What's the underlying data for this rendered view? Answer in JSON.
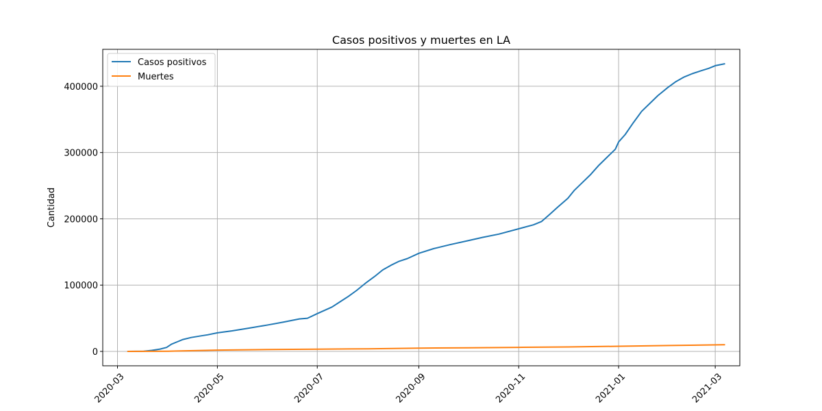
{
  "chart_data": {
    "type": "line",
    "title": "Casos positivos y muertes en LA",
    "xlabel": "",
    "ylabel": "Cantidad",
    "x_type": "date",
    "x_range": [
      "2020-02-21",
      "2021-03-16"
    ],
    "ylim": [
      -21700,
      455700
    ],
    "x_ticks": [
      "2020-03-01",
      "2020-05-01",
      "2020-07-01",
      "2020-09-01",
      "2020-11-01",
      "2021-01-01",
      "2021-03-01"
    ],
    "x_tick_labels": [
      "2020-03",
      "2020-05",
      "2020-07",
      "2020-09",
      "2020-11",
      "2021-01",
      "2021-03"
    ],
    "y_ticks": [
      0,
      100000,
      200000,
      300000,
      400000
    ],
    "y_tick_labels": [
      "0",
      "100000",
      "200000",
      "300000",
      "400000"
    ],
    "grid": true,
    "legend_position": "top-left",
    "series": [
      {
        "name": "Casos positivos",
        "color": "#1f77b4",
        "points": [
          [
            "2020-03-07",
            0
          ],
          [
            "2020-03-17",
            300
          ],
          [
            "2020-03-22",
            1500
          ],
          [
            "2020-03-27",
            3500
          ],
          [
            "2020-03-31",
            6000
          ],
          [
            "2020-04-03",
            11000
          ],
          [
            "2020-04-07",
            15000
          ],
          [
            "2020-04-10",
            18000
          ],
          [
            "2020-04-15",
            21000
          ],
          [
            "2020-04-20",
            23000
          ],
          [
            "2020-04-25",
            25000
          ],
          [
            "2020-05-01",
            28000
          ],
          [
            "2020-05-10",
            31000
          ],
          [
            "2020-05-20",
            35000
          ],
          [
            "2020-06-01",
            40000
          ],
          [
            "2020-06-10",
            44000
          ],
          [
            "2020-06-20",
            49000
          ],
          [
            "2020-06-25",
            50000
          ],
          [
            "2020-07-01",
            57000
          ],
          [
            "2020-07-10",
            67000
          ],
          [
            "2020-07-15",
            75000
          ],
          [
            "2020-07-20",
            83000
          ],
          [
            "2020-07-25",
            92000
          ],
          [
            "2020-07-31",
            104000
          ],
          [
            "2020-08-05",
            113000
          ],
          [
            "2020-08-10",
            123000
          ],
          [
            "2020-08-15",
            130000
          ],
          [
            "2020-08-20",
            136000
          ],
          [
            "2020-08-25",
            140000
          ],
          [
            "2020-09-01",
            148000
          ],
          [
            "2020-09-10",
            155000
          ],
          [
            "2020-09-20",
            161000
          ],
          [
            "2020-10-01",
            167000
          ],
          [
            "2020-10-10",
            172000
          ],
          [
            "2020-10-20",
            177000
          ],
          [
            "2020-11-01",
            185000
          ],
          [
            "2020-11-10",
            191000
          ],
          [
            "2020-11-15",
            196000
          ],
          [
            "2020-11-20",
            207000
          ],
          [
            "2020-11-25",
            218000
          ],
          [
            "2020-12-01",
            231000
          ],
          [
            "2020-12-05",
            243000
          ],
          [
            "2020-12-10",
            255000
          ],
          [
            "2020-12-15",
            267000
          ],
          [
            "2020-12-20",
            281000
          ],
          [
            "2020-12-25",
            293000
          ],
          [
            "2020-12-30",
            305000
          ],
          [
            "2021-01-01",
            316000
          ],
          [
            "2021-01-05",
            327000
          ],
          [
            "2021-01-10",
            345000
          ],
          [
            "2021-01-15",
            362000
          ],
          [
            "2021-01-20",
            374000
          ],
          [
            "2021-01-25",
            386000
          ],
          [
            "2021-01-31",
            398000
          ],
          [
            "2021-02-05",
            407000
          ],
          [
            "2021-02-10",
            414000
          ],
          [
            "2021-02-15",
            419000
          ],
          [
            "2021-02-20",
            423000
          ],
          [
            "2021-02-25",
            427000
          ],
          [
            "2021-03-01",
            431000
          ],
          [
            "2021-03-07",
            434000
          ]
        ]
      },
      {
        "name": "Muertes",
        "color": "#ff7f0e",
        "points": [
          [
            "2020-03-07",
            0
          ],
          [
            "2020-04-01",
            300
          ],
          [
            "2020-05-01",
            2000
          ],
          [
            "2020-06-01",
            2800
          ],
          [
            "2020-07-01",
            3300
          ],
          [
            "2020-08-01",
            3900
          ],
          [
            "2020-09-01",
            5000
          ],
          [
            "2020-10-01",
            5500
          ],
          [
            "2020-11-01",
            6100
          ],
          [
            "2020-12-01",
            6700
          ],
          [
            "2021-01-01",
            7800
          ],
          [
            "2021-02-01",
            8900
          ],
          [
            "2021-03-07",
            10000
          ]
        ]
      }
    ]
  }
}
